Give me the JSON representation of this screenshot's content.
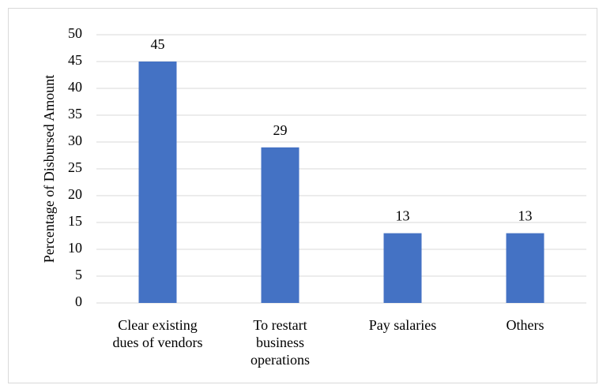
{
  "chart_data": {
    "type": "bar",
    "y_label": "Percentage of Disbursed Amount",
    "categories": [
      "Clear existing dues of vendors",
      "To restart business operations",
      "Pay salaries",
      "Others"
    ],
    "values": [
      45,
      29,
      13,
      13
    ],
    "color": "#4472c4",
    "ylim": [
      0,
      50
    ],
    "yticks": [
      0,
      5,
      10,
      15,
      20,
      25,
      30,
      35,
      40,
      45,
      50
    ],
    "grid": true
  }
}
